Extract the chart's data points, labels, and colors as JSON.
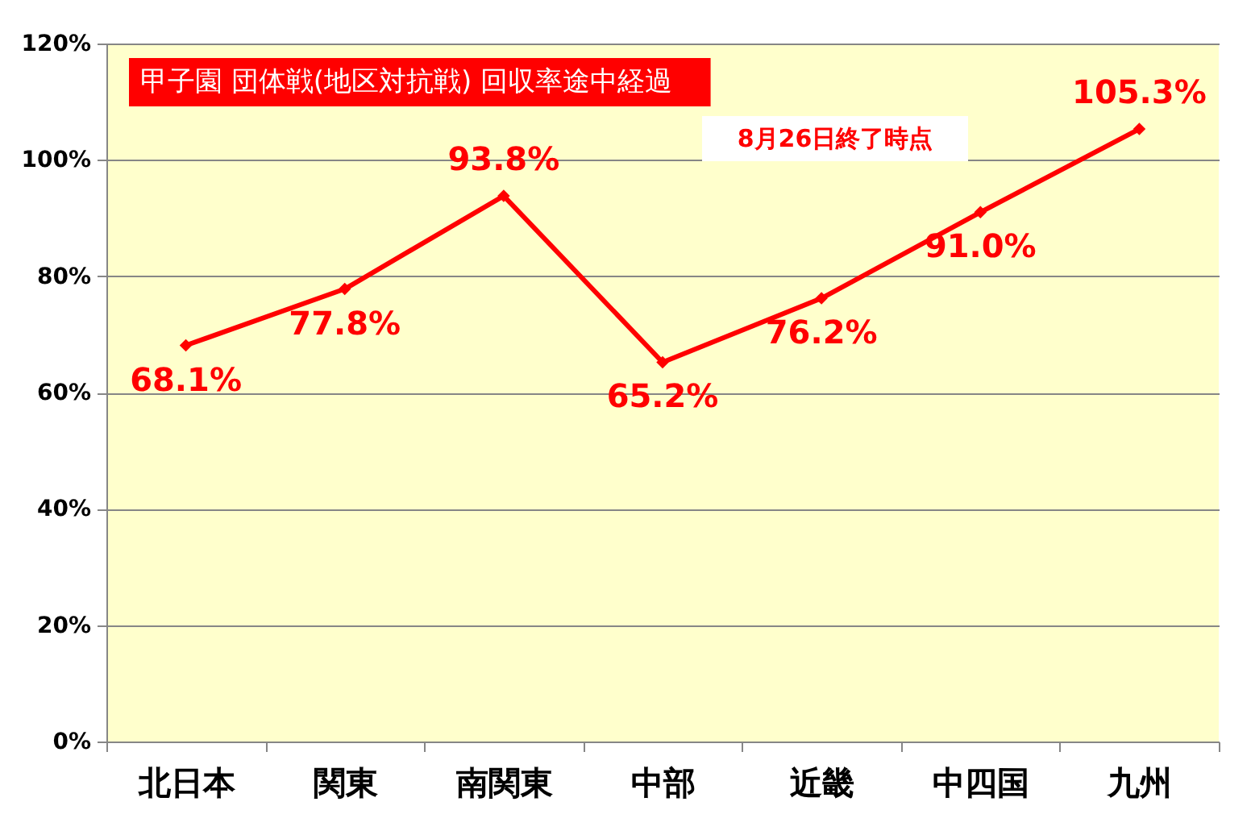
{
  "chart_data": {
    "type": "line",
    "title": "甲子園 団体戦(地区対抗戦) 回収率途中経過",
    "subtitle": "8月26日終了時点",
    "categories": [
      "北日本",
      "関東",
      "南関東",
      "中部",
      "近畿",
      "中四国",
      "九州"
    ],
    "values": [
      68.1,
      77.8,
      93.8,
      65.2,
      76.2,
      91.0,
      105.3
    ],
    "value_labels": [
      "68.1%",
      "77.8%",
      "93.8%",
      "65.2%",
      "76.2%",
      "91.0%",
      "105.3%"
    ],
    "color": "#ff0000",
    "ylim": [
      0,
      120
    ],
    "yticks": [
      {
        "value": 0,
        "label": "0%"
      },
      {
        "value": 20,
        "label": "20%"
      },
      {
        "value": 40,
        "label": "40%"
      },
      {
        "value": 60,
        "label": "60%"
      },
      {
        "value": 80,
        "label": "80%"
      },
      {
        "value": 100,
        "label": "100%"
      },
      {
        "value": 120,
        "label": "120%"
      }
    ],
    "grid": "y",
    "marker": "diamond",
    "line_style": "solid"
  }
}
